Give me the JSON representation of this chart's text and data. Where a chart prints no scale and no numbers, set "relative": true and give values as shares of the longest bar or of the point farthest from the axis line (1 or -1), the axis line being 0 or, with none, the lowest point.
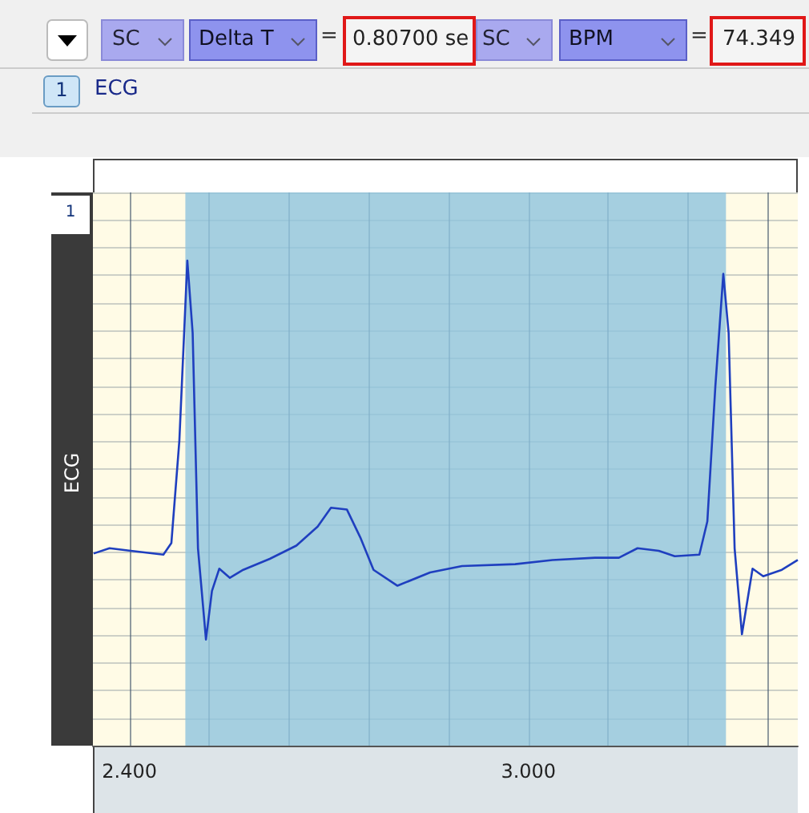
{
  "chart_data": {
    "type": "line",
    "relative": true,
    "tick_labels": "x",
    "grid": true,
    "marker": "none",
    "line_style": "solid",
    "annotations": [
      "SC",
      "Delta T",
      "=",
      "0.80700 se",
      "SC",
      "BPM",
      "=",
      "74.349",
      "1",
      "ECG",
      "1",
      "ECG"
    ],
    "xlim": [
      2.345,
      3.405
    ],
    "xticks": [
      {
        "value": 2.4,
        "label": "2.400"
      },
      {
        "value": 2.52,
        "label": null
      },
      {
        "value": 2.64,
        "label": null
      },
      {
        "value": 2.76,
        "label": null
      },
      {
        "value": 2.88,
        "label": null
      },
      {
        "value": 3.0,
        "label": "3.000"
      },
      {
        "value": 3.12,
        "label": null
      },
      {
        "value": 3.24,
        "label": null
      },
      {
        "value": 3.36,
        "label": null
      }
    ],
    "bands": [
      {
        "axis": "x",
        "from": 2.484,
        "to": 3.297,
        "color": "#8fc4de"
      }
    ],
    "x": [
      2.346,
      2.37,
      2.402,
      2.451,
      2.463,
      2.475,
      2.487,
      2.495,
      2.503,
      2.515,
      2.524,
      2.535,
      2.551,
      2.571,
      2.611,
      2.651,
      2.683,
      2.703,
      2.727,
      2.747,
      2.767,
      2.803,
      2.852,
      2.9,
      2.98,
      3.036,
      3.1,
      3.136,
      3.164,
      3.196,
      3.22,
      3.257,
      3.269,
      3.281,
      3.293,
      3.301,
      3.31,
      3.321,
      3.337,
      3.353,
      3.381,
      3.405
    ],
    "series": [
      {
        "color": "#1f3fbf",
        "values": [
          0.227,
          0.241,
          0.234,
          0.224,
          0.255,
          0.525,
          1.0,
          0.809,
          0.241,
          0,
          0.128,
          0.187,
          0.163,
          0.184,
          0.213,
          0.248,
          0.298,
          0.348,
          0.343,
          0.27,
          0.184,
          0.142,
          0.177,
          0.194,
          0.199,
          0.21,
          0.216,
          0.216,
          0.241,
          0.234,
          0.22,
          0.224,
          0.312,
          0.667,
          0.965,
          0.809,
          0.241,
          0.014,
          0.187,
          0.167,
          0.184,
          0.21
        ]
      }
    ]
  }
}
